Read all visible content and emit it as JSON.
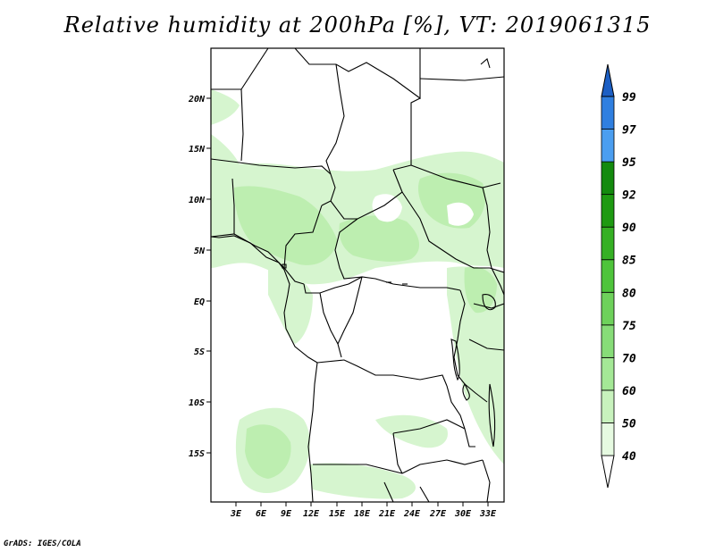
{
  "title": "Relative humidity at 200hPa [%], VT: 2019061315",
  "credit": "GrADS: IGES/COLA",
  "map": {
    "lat_labels": [
      "20N",
      "15N",
      "10N",
      "5N",
      "EQ",
      "5S",
      "10S",
      "15S"
    ],
    "lon_labels": [
      "3E",
      "6E",
      "9E",
      "12E",
      "15E",
      "18E",
      "21E",
      "24E",
      "27E",
      "30E",
      "33E"
    ]
  },
  "colorbar": {
    "levels": [
      "40",
      "50",
      "60",
      "70",
      "75",
      "80",
      "85",
      "90",
      "92",
      "95",
      "97",
      "99"
    ],
    "colors": [
      "#ffffff",
      "#e6fae1",
      "#c8f2bd",
      "#a4e896",
      "#87dc78",
      "#6ed15b",
      "#4ec43b",
      "#35b024",
      "#1e9a12",
      "#138a0e",
      "#4b9ef0",
      "#2f7fe0",
      "#1c5fc4"
    ]
  }
}
